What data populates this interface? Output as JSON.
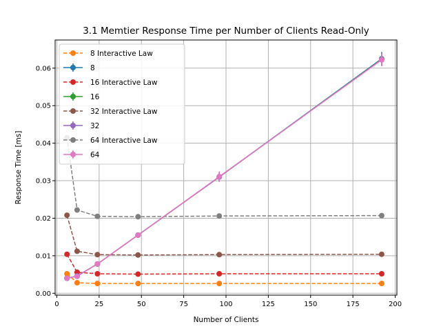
{
  "chart_data": {
    "type": "line",
    "title": "3.1 Memtier Response Time per Number of Clients Read-Only",
    "xlabel": "Number of Clients",
    "ylabel": "Response Time [ms]",
    "xlim": [
      -1,
      201
    ],
    "ylim": [
      -0.0005,
      0.0675
    ],
    "xticks": [
      0,
      25,
      50,
      75,
      100,
      125,
      150,
      175,
      200
    ],
    "yticks": [
      0.0,
      0.01,
      0.02,
      0.03,
      0.04,
      0.05,
      0.06
    ],
    "ytick_labels": [
      "0.00",
      "0.01",
      "0.02",
      "0.03",
      "0.04",
      "0.05",
      "0.06"
    ],
    "grid": true,
    "legend_position": "upper-left",
    "x": [
      6,
      12,
      24,
      48,
      96,
      192
    ],
    "series": [
      {
        "name": "8 Interactive Law",
        "color": "#ff7f0e",
        "style": "dashed",
        "values": [
          0.0052,
          0.0028,
          0.0026,
          0.0026,
          0.0026,
          0.0026
        ]
      },
      {
        "name": "8",
        "color": "#1f77b4",
        "style": "solid",
        "errorbars": true,
        "values": [
          0.004,
          0.0046,
          0.0078,
          0.0155,
          0.031,
          0.0625
        ],
        "errors": [
          0.0003,
          0.0003,
          0.0004,
          0.0006,
          0.0012,
          0.0018
        ]
      },
      {
        "name": "16 Interactive Law",
        "color": "#d62728",
        "style": "dashed",
        "values": [
          0.0104,
          0.0056,
          0.0052,
          0.0051,
          0.0052,
          0.0052
        ]
      },
      {
        "name": "16",
        "color": "#2ca02c",
        "style": "solid",
        "errorbars": true,
        "values": [
          0.004,
          0.0046,
          0.0078,
          0.0155,
          0.031,
          0.0624
        ],
        "errors": [
          0.0003,
          0.0003,
          0.0004,
          0.0006,
          0.0012,
          0.0018
        ]
      },
      {
        "name": "32 Interactive Law",
        "color": "#8c564b",
        "style": "dashed",
        "values": [
          0.0208,
          0.0112,
          0.0103,
          0.0102,
          0.0103,
          0.0104
        ]
      },
      {
        "name": "32",
        "color": "#9467bd",
        "style": "solid",
        "errorbars": true,
        "values": [
          0.004,
          0.0046,
          0.0078,
          0.0155,
          0.031,
          0.0623
        ],
        "errors": [
          0.0003,
          0.0003,
          0.0004,
          0.0006,
          0.0012,
          0.0018
        ]
      },
      {
        "name": "64 Interactive Law",
        "color": "#7f7f7f",
        "style": "dashed",
        "values": [
          0.0415,
          0.0222,
          0.0205,
          0.0204,
          0.0206,
          0.0207
        ]
      },
      {
        "name": "64",
        "color": "#e377c2",
        "style": "solid",
        "errorbars": true,
        "values": [
          0.004,
          0.0045,
          0.0078,
          0.0155,
          0.0311,
          0.0622
        ],
        "errors": [
          0.0003,
          0.0003,
          0.0004,
          0.0006,
          0.0014,
          0.0017
        ]
      }
    ]
  }
}
